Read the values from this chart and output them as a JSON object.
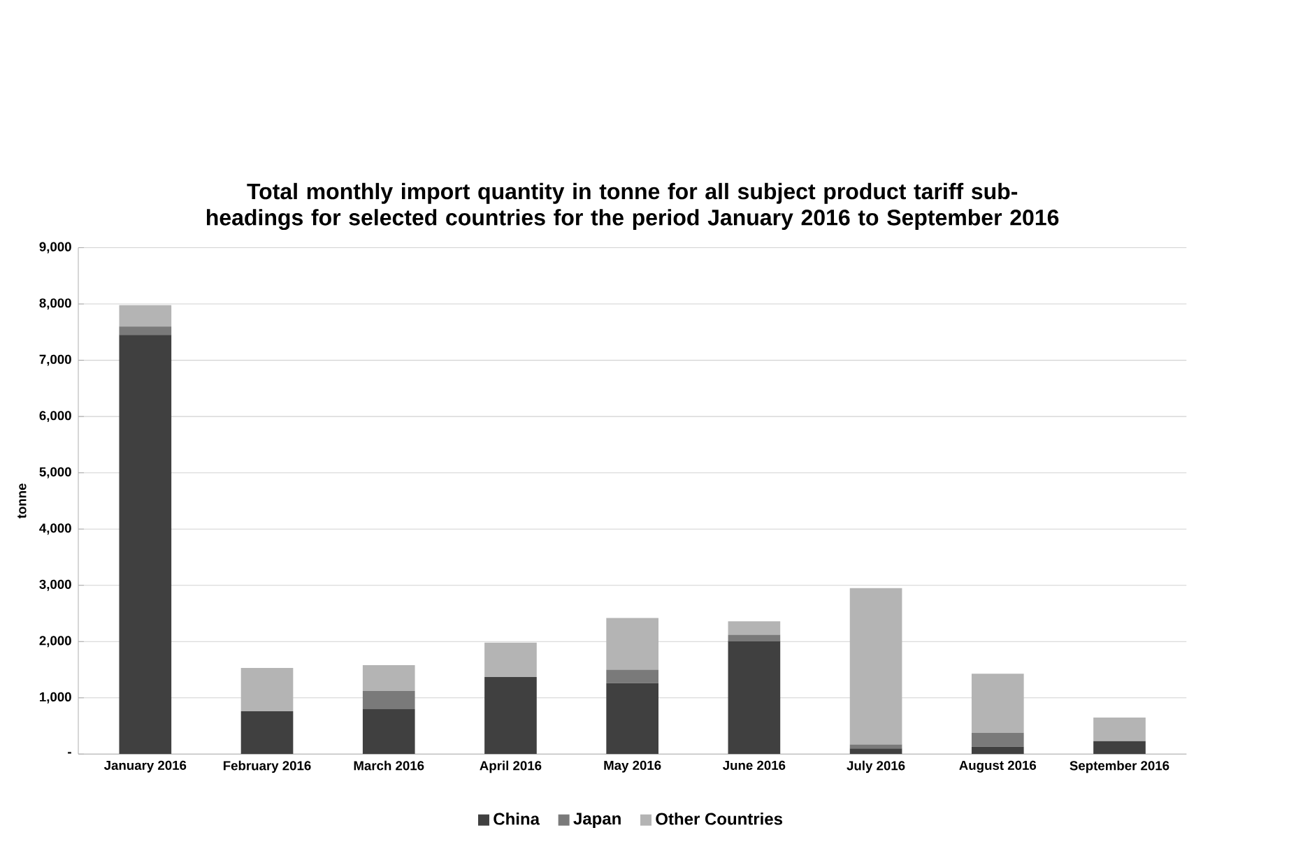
{
  "chart_data": {
    "type": "bar",
    "stacked": true,
    "title": "Total monthly import quantity in tonne for all subject product tariff sub-headings for selected countries for the period January 2016 to September 2016",
    "ylabel": "tonne",
    "categories": [
      "January 2016",
      "February 2016",
      "March 2016",
      "April 2016",
      "May 2016",
      "June 2016",
      "July 2016",
      "August 2016",
      "September 2016"
    ],
    "series": [
      {
        "name": "China",
        "color": "#404040",
        "values": [
          7450,
          760,
          800,
          1370,
          1260,
          2010,
          100,
          130,
          230
        ]
      },
      {
        "name": "Japan",
        "color": "#7a7a7a",
        "values": [
          150,
          0,
          320,
          0,
          240,
          110,
          70,
          250,
          0
        ]
      },
      {
        "name": "Other Countries",
        "color": "#b4b4b4",
        "values": [
          380,
          770,
          460,
          610,
          920,
          240,
          2780,
          1050,
          420
        ]
      }
    ],
    "ylim": [
      0,
      9000
    ],
    "yticks": [
      {
        "value": 0,
        "label": "-"
      },
      {
        "value": 1000,
        "label": "1,000"
      },
      {
        "value": 2000,
        "label": "2,000"
      },
      {
        "value": 3000,
        "label": "3,000"
      },
      {
        "value": 4000,
        "label": "4,000"
      },
      {
        "value": 5000,
        "label": "5,000"
      },
      {
        "value": 6000,
        "label": "6,000"
      },
      {
        "value": 7000,
        "label": "7,000"
      },
      {
        "value": 8000,
        "label": "8,000"
      },
      {
        "value": 9000,
        "label": "9,000"
      }
    ],
    "grid": "y",
    "legend": "bottom"
  }
}
